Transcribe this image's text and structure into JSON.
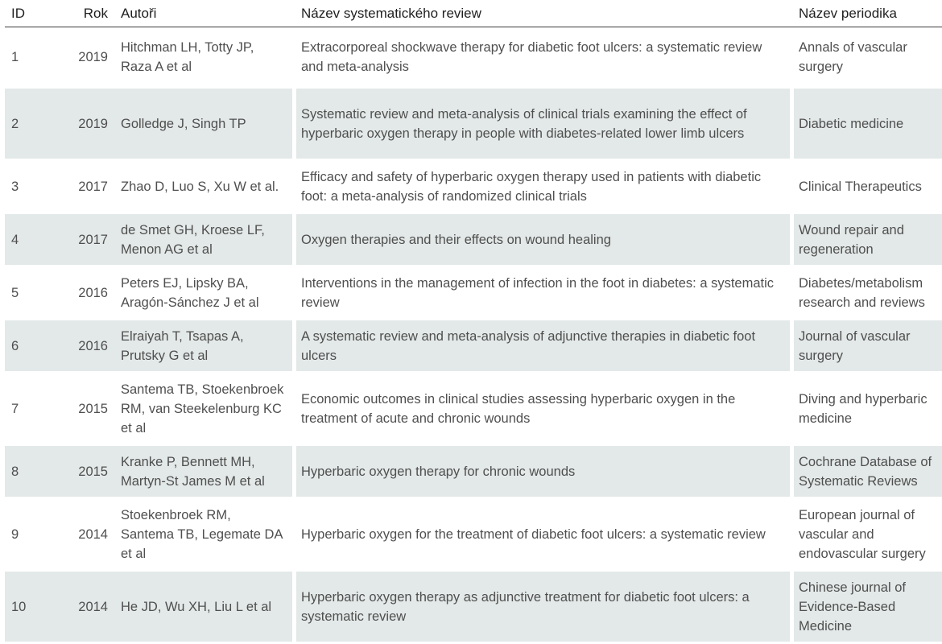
{
  "headers": {
    "id": "ID",
    "year": "Rok",
    "authors": "Autoři",
    "title": "Název systematického review",
    "journal": "Název periodika"
  },
  "rows": [
    {
      "id": "1",
      "year": "2019",
      "authors": "Hitchman LH, Totty JP, Raza A et al",
      "title": "Extracorporeal shockwave therapy for diabetic foot ulcers: a systematic review and meta-analysis",
      "journal": "Annals of vascular surgery",
      "shaded": false
    },
    {
      "id": "2",
      "year": "2019",
      "authors": "Golledge J, Singh TP",
      "title": "Systematic review and meta-analysis of clinical trials examining the effect of hyperbaric oxygen therapy in people with diabetes-related lower limb ulcers",
      "journal": "Diabetic medicine",
      "shaded": true
    },
    {
      "id": "3",
      "year": "2017",
      "authors": "Zhao D, Luo S, Xu W et al.",
      "title": "Efficacy and safety of hyperbaric oxygen therapy used in patients with diabetic foot: a meta-analysis of randomized clinical trials",
      "journal": "Clinical Therapeutics",
      "shaded": false
    },
    {
      "id": "4",
      "year": "2017",
      "authors": "de Smet GH, Kroese LF, Menon AG et al",
      "title": "Oxygen therapies and their effects on wound healing",
      "journal": "Wound repair and regeneration",
      "shaded": true
    },
    {
      "id": "5",
      "year": "2016",
      "authors": "Peters EJ, Lipsky BA, Aragón-Sánchez J et al",
      "title": "Interventions in the management of infection in the foot in diabetes: a systematic review",
      "journal": "Diabetes/metabolism research and reviews",
      "shaded": false
    },
    {
      "id": "6",
      "year": "2016",
      "authors": "Elraiyah T, Tsapas A, Prutsky G et al",
      "title": "A systematic review and meta-analysis of adjunctive therapies in diabetic foot ulcers",
      "journal": "Journal of vascular surgery",
      "shaded": true
    },
    {
      "id": "7",
      "year": "2015",
      "authors": "Santema TB, Stoekenbroek RM, van Steekelenburg KC et al",
      "title": "Economic outcomes in clinical studies assessing hyperbaric oxygen in the treatment of acute and chronic wounds",
      "journal": "Diving and hyperbaric medicine",
      "shaded": false
    },
    {
      "id": "8",
      "year": "2015",
      "authors": "Kranke P, Bennett MH, Martyn-St James M et al",
      "title": "Hyperbaric oxygen therapy for chronic wounds",
      "journal": "Cochrane Database of Systematic Reviews",
      "shaded": true
    },
    {
      "id": "9",
      "year": "2014",
      "authors": "Stoekenbroek RM, Santema TB, Legemate DA et al",
      "title": "Hyperbaric oxygen for the treatment of diabetic foot ulcers: a systematic review",
      "journal": "European journal of vascular and endovascular surgery",
      "shaded": false
    },
    {
      "id": "10",
      "year": "2014",
      "authors": "He JD, Wu XH, Liu L et al",
      "title": "Hyperbaric oxygen therapy as adjunctive treatment for diabetic foot ulcers: a systematic review",
      "journal": "Chinese journal of Evidence-Based Medicine",
      "shaded": true
    }
  ],
  "colors": {
    "shade": "#e3e9e8",
    "text": "#4f4f4f",
    "header_rule": "#3c3c3c"
  }
}
